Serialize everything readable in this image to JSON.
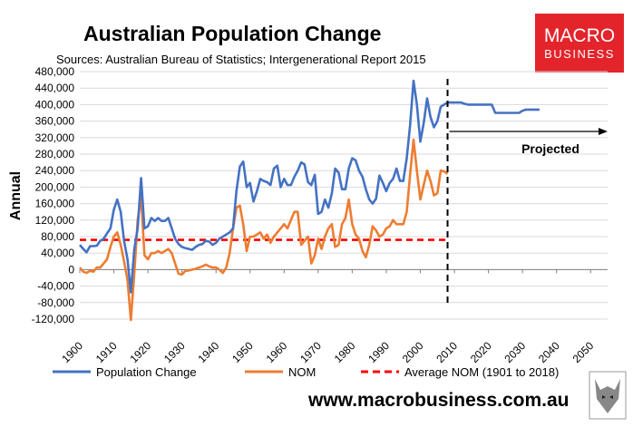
{
  "title": "Australian Population Change",
  "subtitle": "Sources: Australian Bureau of Statistics; Intergenerational Report 2015",
  "logo": {
    "line1": "MACRO",
    "line2": "BUSINESS",
    "color": "#e3242b"
  },
  "website": "www.macrobusiness.com.au",
  "chart_data": {
    "type": "line",
    "ylabel": "Annual",
    "xlim": [
      1900,
      2055
    ],
    "ylim": [
      -120000,
      480000
    ],
    "x_ticks": [
      1900,
      1910,
      1920,
      1930,
      1940,
      1950,
      1960,
      1970,
      1980,
      1990,
      2000,
      2010,
      2020,
      2030,
      2040,
      2050
    ],
    "y_ticks": [
      -120000,
      -80000,
      -40000,
      0,
      40000,
      80000,
      120000,
      160000,
      200000,
      240000,
      280000,
      320000,
      360000,
      400000,
      440000,
      480000
    ],
    "y_tick_labels": [
      "-120,000",
      "-80,000",
      "-40,000",
      "0",
      "40,000",
      "80,000",
      "120,000",
      "160,000",
      "200,000",
      "240,000",
      "280,000",
      "320,000",
      "360,000",
      "400,000",
      "440,000",
      "480,000"
    ],
    "grid": "horizontal",
    "legend_position": "bottom",
    "series": [
      {
        "name": "Population Change",
        "color": "#4472c4",
        "points": [
          [
            1900,
            60000
          ],
          [
            1901,
            50000
          ],
          [
            1902,
            42000
          ],
          [
            1903,
            57000
          ],
          [
            1904,
            57000
          ],
          [
            1905,
            58000
          ],
          [
            1906,
            70000
          ],
          [
            1907,
            75000
          ],
          [
            1908,
            88000
          ],
          [
            1909,
            100000
          ],
          [
            1910,
            145000
          ],
          [
            1911,
            170000
          ],
          [
            1912,
            140000
          ],
          [
            1913,
            70000
          ],
          [
            1914,
            25000
          ],
          [
            1915,
            -55000
          ],
          [
            1916,
            50000
          ],
          [
            1917,
            100000
          ],
          [
            1918,
            222000
          ],
          [
            1919,
            100000
          ],
          [
            1920,
            105000
          ],
          [
            1921,
            125000
          ],
          [
            1922,
            118000
          ],
          [
            1923,
            125000
          ],
          [
            1924,
            118000
          ],
          [
            1925,
            118000
          ],
          [
            1926,
            125000
          ],
          [
            1927,
            100000
          ],
          [
            1928,
            75000
          ],
          [
            1929,
            62000
          ],
          [
            1930,
            55000
          ],
          [
            1931,
            52000
          ],
          [
            1932,
            50000
          ],
          [
            1933,
            48000
          ],
          [
            1934,
            55000
          ],
          [
            1935,
            60000
          ],
          [
            1936,
            62000
          ],
          [
            1937,
            70000
          ],
          [
            1938,
            68000
          ],
          [
            1939,
            60000
          ],
          [
            1940,
            65000
          ],
          [
            1941,
            75000
          ],
          [
            1942,
            80000
          ],
          [
            1943,
            85000
          ],
          [
            1944,
            90000
          ],
          [
            1945,
            100000
          ],
          [
            1946,
            190000
          ],
          [
            1947,
            250000
          ],
          [
            1948,
            262000
          ],
          [
            1949,
            200000
          ],
          [
            1950,
            210000
          ],
          [
            1951,
            165000
          ],
          [
            1952,
            190000
          ],
          [
            1953,
            220000
          ],
          [
            1954,
            215000
          ],
          [
            1955,
            212000
          ],
          [
            1956,
            205000
          ],
          [
            1957,
            245000
          ],
          [
            1958,
            252000
          ],
          [
            1959,
            200000
          ],
          [
            1960,
            220000
          ],
          [
            1961,
            205000
          ],
          [
            1962,
            205000
          ],
          [
            1963,
            225000
          ],
          [
            1964,
            240000
          ],
          [
            1965,
            260000
          ],
          [
            1966,
            255000
          ],
          [
            1967,
            212000
          ],
          [
            1968,
            205000
          ],
          [
            1969,
            230000
          ],
          [
            1970,
            135000
          ],
          [
            1971,
            140000
          ],
          [
            1972,
            170000
          ],
          [
            1973,
            150000
          ],
          [
            1974,
            185000
          ],
          [
            1975,
            245000
          ],
          [
            1976,
            235000
          ],
          [
            1977,
            195000
          ],
          [
            1978,
            195000
          ],
          [
            1979,
            245000
          ],
          [
            1980,
            270000
          ],
          [
            1981,
            265000
          ],
          [
            1982,
            240000
          ],
          [
            1983,
            225000
          ],
          [
            1984,
            195000
          ],
          [
            1985,
            170000
          ],
          [
            1986,
            160000
          ],
          [
            1987,
            172000
          ],
          [
            1988,
            228000
          ],
          [
            1989,
            210000
          ],
          [
            1990,
            190000
          ],
          [
            1991,
            210000
          ],
          [
            1992,
            220000
          ],
          [
            1993,
            245000
          ],
          [
            1994,
            215000
          ],
          [
            1995,
            215000
          ],
          [
            1996,
            270000
          ],
          [
            1997,
            350000
          ],
          [
            1998,
            458000
          ],
          [
            1999,
            400000
          ],
          [
            2000,
            310000
          ],
          [
            2001,
            355000
          ],
          [
            2002,
            415000
          ],
          [
            2003,
            370000
          ],
          [
            2004,
            345000
          ],
          [
            2005,
            360000
          ],
          [
            2006,
            395000
          ],
          [
            2007,
            400000
          ],
          [
            2008,
            405000
          ],
          [
            2009,
            405000
          ],
          [
            2010,
            405000
          ],
          [
            2011,
            405000
          ],
          [
            2012,
            405000
          ],
          [
            2013,
            402000
          ],
          [
            2014,
            400000
          ],
          [
            2015,
            400000
          ],
          [
            2016,
            400000
          ],
          [
            2017,
            400000
          ],
          [
            2018,
            400000
          ],
          [
            2019,
            400000
          ],
          [
            2020,
            400000
          ],
          [
            2021,
            400000
          ],
          [
            2022,
            380000
          ],
          [
            2023,
            380000
          ],
          [
            2024,
            380000
          ],
          [
            2025,
            380000
          ],
          [
            2026,
            380000
          ],
          [
            2027,
            380000
          ],
          [
            2028,
            380000
          ],
          [
            2029,
            380000
          ],
          [
            2030,
            385000
          ],
          [
            2031,
            388000
          ],
          [
            2032,
            388000
          ],
          [
            2033,
            388000
          ],
          [
            2034,
            388000
          ],
          [
            2035,
            388000
          ]
        ]
      },
      {
        "name": "NOM",
        "color": "#ed7d31",
        "points": [
          [
            1900,
            5000
          ],
          [
            1901,
            -5000
          ],
          [
            1902,
            -8000
          ],
          [
            1903,
            -3000
          ],
          [
            1904,
            -5000
          ],
          [
            1905,
            5000
          ],
          [
            1906,
            5000
          ],
          [
            1907,
            15000
          ],
          [
            1908,
            25000
          ],
          [
            1909,
            55000
          ],
          [
            1910,
            80000
          ],
          [
            1911,
            90000
          ],
          [
            1912,
            60000
          ],
          [
            1913,
            20000
          ],
          [
            1914,
            -25000
          ],
          [
            1915,
            -122000
          ],
          [
            1916,
            -10000
          ],
          [
            1917,
            120000
          ],
          [
            1918,
            175000
          ],
          [
            1919,
            35000
          ],
          [
            1920,
            25000
          ],
          [
            1921,
            40000
          ],
          [
            1922,
            40000
          ],
          [
            1923,
            45000
          ],
          [
            1924,
            40000
          ],
          [
            1925,
            45000
          ],
          [
            1926,
            50000
          ],
          [
            1927,
            40000
          ],
          [
            1928,
            15000
          ],
          [
            1929,
            -10000
          ],
          [
            1930,
            -12000
          ],
          [
            1931,
            -3000
          ],
          [
            1932,
            -2000
          ],
          [
            1933,
            0
          ],
          [
            1934,
            2000
          ],
          [
            1935,
            5000
          ],
          [
            1936,
            8000
          ],
          [
            1937,
            12000
          ],
          [
            1938,
            8000
          ],
          [
            1939,
            5000
          ],
          [
            1940,
            5000
          ],
          [
            1941,
            0
          ],
          [
            1942,
            -8000
          ],
          [
            1943,
            5000
          ],
          [
            1944,
            40000
          ],
          [
            1945,
            100000
          ],
          [
            1946,
            150000
          ],
          [
            1947,
            155000
          ],
          [
            1948,
            110000
          ],
          [
            1949,
            45000
          ],
          [
            1950,
            80000
          ],
          [
            1951,
            80000
          ],
          [
            1952,
            85000
          ],
          [
            1953,
            90000
          ],
          [
            1954,
            75000
          ],
          [
            1955,
            85000
          ],
          [
            1956,
            65000
          ],
          [
            1957,
            80000
          ],
          [
            1958,
            90000
          ],
          [
            1959,
            100000
          ],
          [
            1960,
            110000
          ],
          [
            1961,
            100000
          ],
          [
            1962,
            120000
          ],
          [
            1963,
            140000
          ],
          [
            1964,
            140000
          ],
          [
            1965,
            60000
          ],
          [
            1966,
            70000
          ],
          [
            1967,
            80000
          ],
          [
            1968,
            15000
          ],
          [
            1969,
            35000
          ],
          [
            1970,
            75000
          ],
          [
            1971,
            50000
          ],
          [
            1972,
            80000
          ],
          [
            1973,
            100000
          ],
          [
            1974,
            110000
          ],
          [
            1975,
            55000
          ],
          [
            1976,
            60000
          ],
          [
            1977,
            110000
          ],
          [
            1978,
            125000
          ],
          [
            1979,
            170000
          ],
          [
            1980,
            110000
          ],
          [
            1981,
            85000
          ],
          [
            1982,
            75000
          ],
          [
            1983,
            45000
          ],
          [
            1984,
            30000
          ],
          [
            1985,
            60000
          ],
          [
            1986,
            105000
          ],
          [
            1987,
            95000
          ],
          [
            1988,
            80000
          ],
          [
            1989,
            85000
          ],
          [
            1990,
            100000
          ],
          [
            1991,
            105000
          ],
          [
            1992,
            120000
          ],
          [
            1993,
            110000
          ],
          [
            1994,
            110000
          ],
          [
            1995,
            110000
          ],
          [
            1996,
            140000
          ],
          [
            1997,
            230000
          ],
          [
            1998,
            315000
          ],
          [
            1999,
            240000
          ],
          [
            2000,
            170000
          ],
          [
            2001,
            205000
          ],
          [
            2002,
            240000
          ],
          [
            2003,
            215000
          ],
          [
            2004,
            180000
          ],
          [
            2005,
            185000
          ],
          [
            2006,
            240000
          ],
          [
            2007,
            238000
          ],
          [
            2008,
            232000
          ]
        ]
      },
      {
        "name": "Average NOM (1901 to 2018)",
        "color": "#ff0000",
        "dashed": true,
        "points": [
          [
            1900,
            72000
          ],
          [
            2008,
            72000
          ]
        ]
      }
    ],
    "annotations": [
      {
        "text": "Projected",
        "x": 2008
      }
    ]
  }
}
